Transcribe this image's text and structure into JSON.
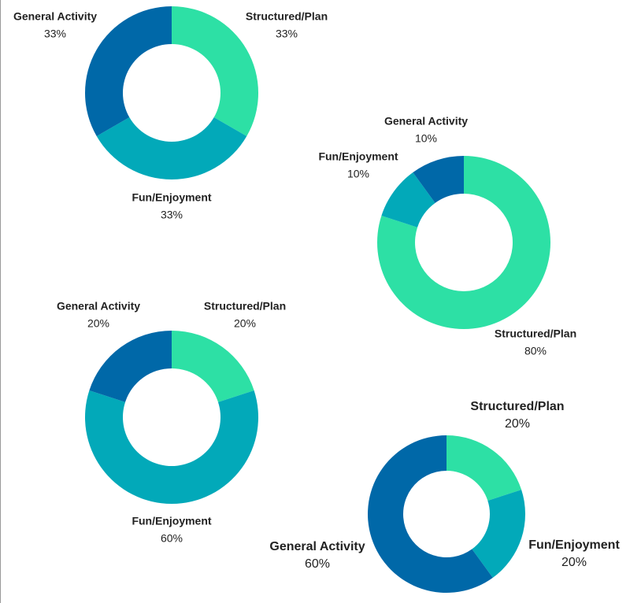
{
  "chart_data": [
    {
      "type": "donut",
      "categories": [
        "Structured/Plan",
        "Fun/Enjoyment",
        "General Activity"
      ],
      "values": [
        33,
        33,
        33
      ],
      "value_labels": [
        "33%",
        "33%",
        "33%"
      ],
      "colors": [
        "#2de0a5",
        "#02a9b9",
        "#0068a8"
      ]
    },
    {
      "type": "donut",
      "categories": [
        "Structured/Plan",
        "Fun/Enjoyment",
        "General Activity"
      ],
      "values": [
        80,
        10,
        10
      ],
      "value_labels": [
        "80%",
        "10%",
        "10%"
      ],
      "colors": [
        "#2de0a5",
        "#02a9b9",
        "#0068a8"
      ]
    },
    {
      "type": "donut",
      "categories": [
        "Structured/Plan",
        "Fun/Enjoyment",
        "General Activity"
      ],
      "values": [
        20,
        60,
        20
      ],
      "value_labels": [
        "20%",
        "60%",
        "20%"
      ],
      "colors": [
        "#2de0a5",
        "#02a9b9",
        "#0068a8"
      ]
    },
    {
      "type": "donut",
      "categories": [
        "Structured/Plan",
        "Fun/Enjoyment",
        "General Activity"
      ],
      "values": [
        20,
        20,
        60
      ],
      "value_labels": [
        "20%",
        "20%",
        "60%"
      ],
      "colors": [
        "#2de0a5",
        "#02a9b9",
        "#0068a8"
      ]
    }
  ]
}
